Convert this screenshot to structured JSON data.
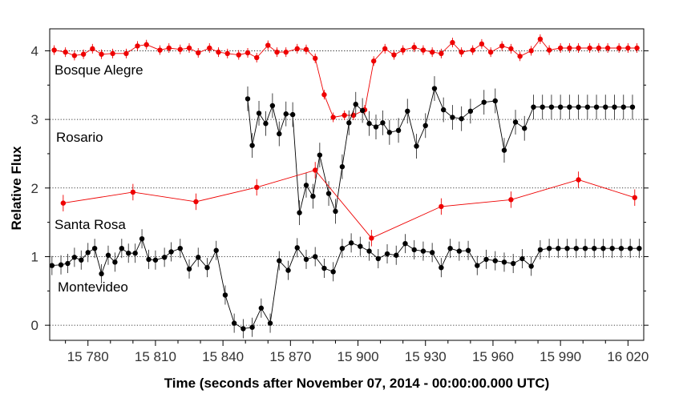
{
  "chart_data": {
    "type": "line",
    "xlabel": "Time (seconds after November 07, 2014 - 00:00:00.000 UTC)",
    "ylabel": "Relative Flux",
    "xlim": [
      15763,
      16027
    ],
    "ylim": [
      -0.22,
      4.32
    ],
    "x_ticks": [
      15780,
      15810,
      15840,
      15870,
      15900,
      15930,
      15960,
      15990,
      16020
    ],
    "x_tick_labels": [
      "15 780",
      "15 810",
      "15 840",
      "15 870",
      "15 900",
      "15 930",
      "15 960",
      "15 990",
      "16 020"
    ],
    "y_ticks": [
      0,
      1,
      2,
      3,
      4
    ],
    "y_tick_labels": [
      "0",
      "1",
      "2",
      "3",
      "4"
    ],
    "grid": "horizontal dotted",
    "legend": "none",
    "series": [
      {
        "name": "Bosque Alegre",
        "color": "#ee0000",
        "err": 0.07,
        "x": [
          15765,
          15768,
          15771,
          15774,
          15777,
          15780,
          15783,
          15786,
          15790,
          15796,
          15801,
          15804,
          15806,
          15808,
          15811,
          15813,
          15816,
          15818,
          15820,
          15823,
          15825,
          15827,
          15830,
          15832,
          15834,
          15837,
          15839,
          15841,
          15843,
          15846,
          15848,
          15851,
          15853,
          15855,
          15858,
          15860,
          15862,
          15865,
          15868,
          15871,
          15873,
          15876,
          15878,
          15880,
          15883,
          15885,
          15887,
          15889,
          15892,
          15894,
          15896,
          15899,
          15901,
          15904,
          15906,
          15909,
          15911,
          15914,
          15916,
          15919,
          15921,
          15923,
          15926,
          15928,
          15931,
          15933,
          15935,
          15937,
          15940,
          15942,
          15944,
          15947,
          15949,
          15951,
          15954,
          15956,
          15958,
          15961,
          15963,
          15965,
          15968,
          15970,
          15972,
          15975,
          15978,
          15980,
          15982,
          15985,
          15987,
          15990,
          15992,
          15995,
          15997,
          16000,
          16002,
          16004,
          16006,
          16009,
          16011,
          16013,
          16016,
          16018,
          16021,
          16023,
          16026
        ],
        "y": [
          4.02,
          4.0,
          3.98,
          4.01,
          3.92,
          3.98,
          3.95,
          3.98,
          3.97,
          3.95,
          4.0,
          4.02,
          4.07,
          4.05,
          4.08,
          4.1,
          4.06,
          4.08,
          4.0,
          4.02,
          4.03,
          4.05,
          4.02,
          4.04,
          4.01,
          4.03,
          3.98,
          4.0,
          4.04,
          4.02,
          3.97,
          3.96,
          3.94,
          3.92,
          3.96,
          3.97,
          3.93,
          3.98,
          3.88,
          3.95,
          4.08,
          4.05,
          3.99,
          4.0,
          3.97,
          4.0,
          4.02,
          4.03,
          3.99,
          4.0,
          3.9,
          3.75,
          3.6,
          3.37,
          3.25,
          3.03,
          3.04,
          3.06,
          3.08,
          3.05,
          3.06,
          3.08,
          3.12,
          3.3,
          3.5,
          3.85,
          3.95,
          4.05,
          4.0,
          3.92,
          3.96,
          4.0,
          4.04,
          4.07,
          4.02,
          3.98,
          4.01,
          3.96,
          4.0,
          4.13,
          4.05,
          3.97,
          3.99,
          4.03,
          4.09,
          4.05,
          3.98,
          4.02,
          4.07,
          4.05,
          4.03,
          4.0,
          3.98,
          3.93,
          3.97,
          4.02,
          4.17,
          4.1,
          4.02,
          4.05,
          4.04,
          4.04,
          4.04,
          4.05,
          4.04
        ],
        "markers": [
          15765,
          15770,
          15774,
          15778,
          15782,
          15786,
          15791,
          15797,
          15802,
          15806,
          15812,
          15816,
          15821,
          15825,
          15829,
          15834,
          15838,
          15842,
          15847,
          15851,
          15855,
          15860,
          15864,
          15868,
          15873,
          15877,
          15881,
          15885,
          15889,
          15894,
          15898,
          15903,
          15907,
          15912,
          15916,
          15920,
          15925,
          15929,
          15933,
          15937,
          15942,
          15946,
          15951,
          15955,
          15959,
          15964,
          15968,
          15972,
          15977,
          15981,
          15985,
          15990,
          15994,
          15998,
          16003,
          16007,
          16011,
          16016,
          16020,
          16024
        ],
        "marker_y": [
          4.01,
          3.98,
          3.93,
          3.95,
          4.03,
          3.95,
          3.96,
          3.96,
          4.07,
          4.09,
          4.01,
          4.04,
          4.02,
          4.04,
          3.97,
          4.04,
          3.98,
          3.96,
          3.94,
          3.97,
          3.9,
          4.08,
          3.98,
          3.98,
          4.03,
          4.02,
          3.89,
          3.36,
          3.03,
          3.06,
          3.06,
          3.14,
          3.85,
          4.03,
          3.94,
          4.01,
          4.05,
          4.01,
          3.98,
          3.96,
          4.12,
          3.98,
          4.01,
          4.1,
          3.98,
          4.07,
          4.03,
          3.92,
          4.0,
          4.17,
          4.01,
          4.04,
          4.04,
          4.04,
          4.04,
          4.04,
          4.04,
          4.04,
          4.04,
          4.04
        ]
      },
      {
        "name": "Rosario",
        "color": "#000000",
        "err": 0.18,
        "x": [
          15851,
          15854,
          15857,
          15860,
          15862,
          15865,
          15868,
          15870,
          15873,
          15876,
          15878,
          15881,
          15885,
          15888,
          15892,
          15895,
          15899,
          15903,
          15907,
          15910,
          15913,
          15916,
          15919,
          15922,
          15926,
          15929,
          15933,
          15936,
          15940,
          15943,
          15946,
          15950,
          15954,
          15957,
          15961,
          15965,
          15969,
          15973,
          15977,
          15980,
          15983,
          15986,
          15988,
          15991,
          15994,
          15997,
          16000,
          16003,
          16006,
          16009,
          16013,
          16017,
          16021,
          16025
        ],
        "y": [
          3.3,
          2.62,
          3.1,
          2.95,
          3.05,
          3.2,
          2.8,
          3.1,
          3.05,
          2.85,
          2.2,
          1.65,
          2.05,
          1.88,
          2.49,
          1.92,
          1.67,
          2.32,
          2.96,
          3.23,
          3.08,
          3.12,
          2.95,
          2.91,
          2.95,
          2.82,
          2.84,
          2.98,
          3.12,
          2.62,
          2.91,
          3.45,
          3.16,
          3.0,
          3.02,
          3.12,
          3.25,
          3.28,
          2.54,
          2.95,
          2.87,
          3.18,
          2.95,
          3.06,
          3.01,
          3.12,
          3.07,
          3.18,
          3.25,
          2.55,
          2.96,
          2.87,
          3.18,
          3.1
        ],
        "markers": [
          15851,
          15853,
          15856,
          15859,
          15862,
          15865,
          15868,
          15871,
          15874,
          15877,
          15880,
          15883,
          15887,
          15890,
          15893,
          15896,
          15899,
          15902,
          15905,
          15908,
          15911,
          15914,
          15918,
          15922,
          15926,
          15930,
          15934,
          15938,
          15942,
          15946,
          15950,
          15956,
          15961,
          15965,
          15970,
          15974,
          15978,
          15982,
          15986,
          15990,
          15994,
          15998,
          16002,
          16006,
          16010,
          16014,
          16018,
          16022
        ],
        "marker_y": [
          3.3,
          2.62,
          3.09,
          2.94,
          3.2,
          2.79,
          3.08,
          3.07,
          1.64,
          2.04,
          1.88,
          2.48,
          1.92,
          1.66,
          2.31,
          2.95,
          3.22,
          3.13,
          2.94,
          2.89,
          2.95,
          2.81,
          2.84,
          3.12,
          2.61,
          2.91,
          3.45,
          3.14,
          3.03,
          3.01,
          3.12,
          3.25,
          3.27,
          2.55,
          2.96,
          2.87,
          3.18,
          3.18,
          3.18,
          3.18,
          3.18,
          3.18,
          3.18,
          3.18,
          3.18,
          3.18,
          3.18,
          3.18
        ]
      },
      {
        "name": "Santa Rosa",
        "color": "#ee0000",
        "err": 0.12,
        "x": [
          15769,
          15800,
          15828,
          15855,
          15881,
          15906,
          15937,
          15968,
          15998,
          16023
        ],
        "y": [
          1.78,
          1.94,
          1.8,
          2.01,
          2.26,
          1.27,
          1.73,
          1.83,
          2.12,
          1.86
        ]
      },
      {
        "name": "Montevideo",
        "color": "#000000",
        "err": 0.14,
        "x": [
          15763,
          15767,
          15770,
          15773,
          15776,
          15779,
          15782,
          15785,
          15788,
          15791,
          15794,
          15797,
          15800,
          15803,
          15806,
          15809,
          15812,
          15815,
          15818,
          15821,
          15824,
          15827,
          15830,
          15833,
          15836,
          15839,
          15842,
          15845,
          15848,
          15851,
          15854,
          15857,
          15860,
          15863,
          15866,
          15869,
          15872,
          15875,
          15878,
          15881,
          15884,
          15887,
          15890,
          15893,
          15896,
          15899,
          15902,
          15905,
          15908,
          15911,
          15914,
          15917,
          15920,
          15923,
          15926,
          15929,
          15932,
          15935,
          15938,
          15941,
          15944,
          15947,
          15950,
          15953,
          15956,
          15959,
          15962,
          15965,
          15968,
          15971,
          15974,
          15977,
          15980,
          15983,
          15986,
          15989,
          15992,
          15995,
          15998,
          16001,
          16004,
          16007,
          16010,
          16013,
          16016,
          16019,
          16022,
          16025
        ],
        "y": [
          0.87,
          0.88,
          0.9,
          0.94,
          1.0,
          0.95,
          1.06,
          1.12,
          0.75,
          1.02,
          0.92,
          1.12,
          1.05,
          1.05,
          1.27,
          0.96,
          0.95,
          0.99,
          1.07,
          1.12,
          0.82,
          0.99,
          0.84,
          1.09,
          0.44,
          0.03,
          -0.04,
          -0.03,
          0.25,
          0.03,
          0.94,
          0.8,
          1.13,
          0.96,
          1.0,
          1.04,
          0.83,
          0.78,
          1.12,
          1.2,
          1.15,
          1.08,
          0.97,
          1.04,
          1.03,
          1.19,
          1.1,
          1.08,
          1.06,
          1.05,
          1.04,
          1.08,
          1.01,
          0.84,
          1.12,
          1.08,
          1.09,
          0.87,
          0.94,
          0.96,
          0.92,
          0.94,
          0.9,
          0.92,
          0.94,
          0.97,
          0.87,
          1.1,
          1.12,
          1.1,
          1.08,
          1.05,
          1.04,
          1.0,
          0.97,
          0.95,
          0.93,
          0.91,
          0.88,
          0.86,
          0.88,
          0.9,
          0.94,
          0.97,
          0.86,
          1.1,
          1.12,
          1.1
        ],
        "markers": [
          15764,
          15768,
          15771,
          15774,
          15777,
          15780,
          15783,
          15786,
          15789,
          15792,
          15795,
          15798,
          15801,
          15804,
          15807,
          15810,
          15814,
          15817,
          15821,
          15825,
          15829,
          15833,
          15837,
          15841,
          15845,
          15849,
          15853,
          15857,
          15861,
          15865,
          15869,
          15873,
          15877,
          15881,
          15885,
          15889,
          15893,
          15897,
          15901,
          15905,
          15909,
          15913,
          15917,
          15921,
          15925,
          15929,
          15933,
          15937,
          15941,
          15945,
          15949,
          15953,
          15957,
          15961,
          15965,
          15969,
          15973,
          15977,
          15981,
          15985,
          15989,
          15993,
          15997,
          16001,
          16005,
          16009,
          16013,
          16017,
          16021,
          16025
        ],
        "marker_y": [
          0.87,
          0.88,
          0.9,
          0.99,
          0.95,
          1.06,
          1.12,
          0.75,
          1.02,
          0.92,
          1.12,
          1.05,
          1.05,
          1.26,
          0.96,
          0.95,
          0.99,
          1.07,
          1.12,
          0.82,
          0.99,
          0.84,
          1.09,
          0.44,
          0.03,
          -0.05,
          -0.03,
          0.25,
          0.03,
          0.94,
          0.8,
          1.13,
          0.96,
          1.0,
          0.83,
          0.78,
          1.12,
          1.2,
          1.15,
          1.08,
          0.97,
          1.04,
          1.02,
          1.19,
          1.1,
          1.08,
          1.06,
          0.84,
          1.12,
          1.08,
          1.09,
          0.87,
          0.96,
          0.94,
          0.92,
          0.9,
          0.97,
          0.86,
          1.1,
          1.12,
          1.12,
          1.12,
          1.12,
          1.12,
          1.12,
          1.12,
          1.12,
          1.12,
          1.12,
          1.12
        ]
      }
    ],
    "station_labels": [
      "Bosque Alegre",
      "Rosario",
      "Santa Rosa",
      "Montevideo"
    ]
  }
}
